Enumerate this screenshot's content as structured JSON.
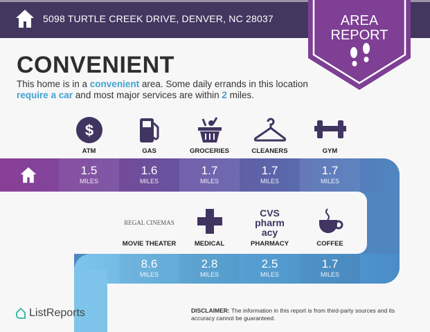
{
  "header": {
    "address": "5098 TURTLE CREEK DRIVE, DENVER, NC 28037",
    "badge_line1": "AREA",
    "badge_line2": "REPORT"
  },
  "summary": {
    "title": "CONVENIENT",
    "desc_1": "This home is in a ",
    "desc_hl1": "convenient",
    "desc_2": " area. Some daily errands in this location ",
    "desc_hl2": "require a car",
    "desc_3": " and most major services are within ",
    "desc_hl3": "2",
    "desc_4": " miles."
  },
  "row1": [
    {
      "label": "ATM",
      "value": "1.5",
      "unit": "MILES",
      "icon": "dollar-icon"
    },
    {
      "label": "GAS",
      "value": "1.6",
      "unit": "MILES",
      "icon": "gas-pump-icon"
    },
    {
      "label": "GROCERIES",
      "value": "1.7",
      "unit": "MILES",
      "icon": "basket-icon"
    },
    {
      "label": "CLEANERS",
      "value": "1.7",
      "unit": "MILES",
      "icon": "hanger-icon"
    },
    {
      "label": "GYM",
      "value": "1.7",
      "unit": "MILES",
      "icon": "dumbbell-icon"
    }
  ],
  "row2": [
    {
      "label": "MOVIE THEATER",
      "value": "8.6",
      "unit": "MILES",
      "icon": "regal-cinemas-logo",
      "logo_text": "REGAL CINEMAS"
    },
    {
      "label": "MEDICAL",
      "value": "2.8",
      "unit": "MILES",
      "icon": "medical-cross-icon"
    },
    {
      "label": "PHARMACY",
      "value": "2.5",
      "unit": "MILES",
      "icon": "cvs-logo",
      "logo_text": "CVS pharmacy"
    },
    {
      "label": "COFFEE",
      "value": "1.7",
      "unit": "MILES",
      "icon": "coffee-cup-icon"
    }
  ],
  "footer": {
    "brand": "ListReports",
    "disclaimer_label": "DISCLAIMER:",
    "disclaimer_text": " The information in this report is from third-party sources and its accuracy cannot be guaranteed."
  },
  "colors": {
    "header": "#433760",
    "badge": "#7e3f94",
    "icon": "#3f3560",
    "accent": "#3fa3cf"
  }
}
